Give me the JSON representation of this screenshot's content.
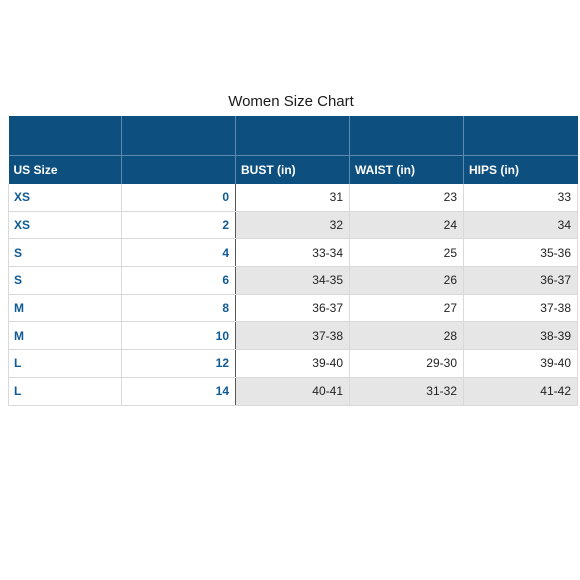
{
  "title": "Women Size Chart",
  "headers": [
    "US Size",
    "",
    "BUST (in)",
    "WAIST (in)",
    "HIPS  (in)"
  ],
  "rows": [
    {
      "size": "XS",
      "us": "0",
      "bust": "31",
      "waist": "23",
      "hips": "33"
    },
    {
      "size": "XS",
      "us": "2",
      "bust": "32",
      "waist": "24",
      "hips": "34"
    },
    {
      "size": "S",
      "us": "4",
      "bust": "33-34",
      "waist": "25",
      "hips": "35-36"
    },
    {
      "size": "S",
      "us": "6",
      "bust": "34-35",
      "waist": "26",
      "hips": "36-37"
    },
    {
      "size": "M",
      "us": "8",
      "bust": "36-37",
      "waist": "27",
      "hips": "37-38"
    },
    {
      "size": "M",
      "us": "10",
      "bust": "37-38",
      "waist": "28",
      "hips": "38-39"
    },
    {
      "size": "L",
      "us": "12",
      "bust": "39-40",
      "waist": "29-30",
      "hips": "39-40"
    },
    {
      "size": "L",
      "us": "14",
      "bust": "40-41",
      "waist": "31-32",
      "hips": "41-42"
    }
  ],
  "colors": {
    "header_bg": "#0d4f7e",
    "size_text": "#0e5a95",
    "shade_bg": "#e6e6e6"
  }
}
